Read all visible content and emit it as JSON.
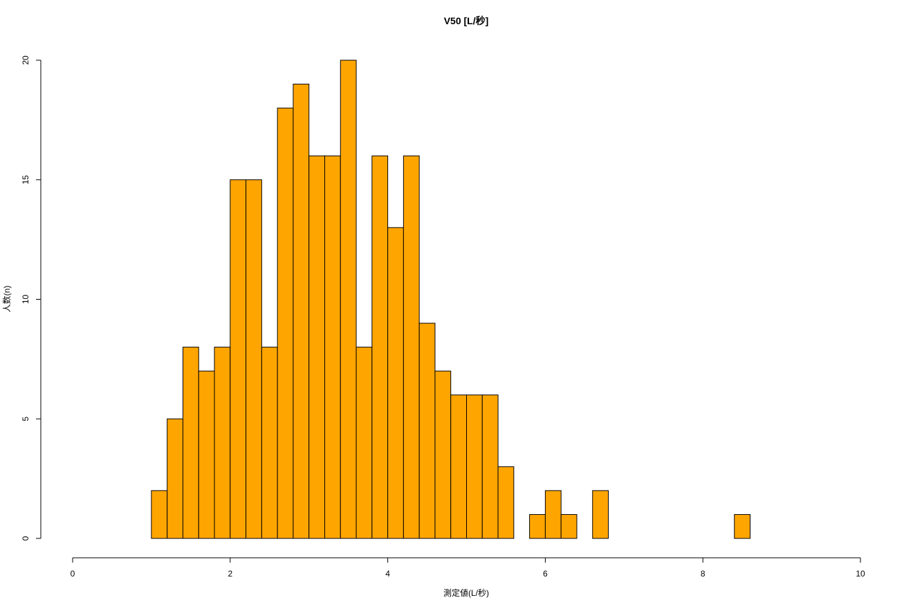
{
  "chart_data": {
    "type": "bar",
    "title": "V50 [L/秒]",
    "xlabel": "測定値(L/秒)",
    "ylabel": "人数(n)",
    "xlim": [
      0,
      10
    ],
    "ylim": [
      0,
      20
    ],
    "x_ticks": [
      "0",
      "2",
      "4",
      "6",
      "8",
      "10"
    ],
    "y_ticks": [
      "0",
      "5",
      "10",
      "15",
      "20"
    ],
    "bin_width": 0.2,
    "bin_starts": [
      1.0,
      1.2,
      1.4,
      1.6,
      1.8,
      2.0,
      2.2,
      2.4,
      2.6,
      2.8,
      3.0,
      3.2,
      3.4,
      3.6,
      3.8,
      4.0,
      4.2,
      4.4,
      4.6,
      4.8,
      5.0,
      5.2,
      5.4,
      5.6,
      5.8,
      6.0,
      6.2,
      6.4,
      6.6,
      6.8,
      7.0,
      7.2,
      7.4,
      7.6,
      7.8,
      8.0,
      8.2,
      8.4
    ],
    "values": [
      2,
      5,
      8,
      7,
      8,
      15,
      15,
      8,
      18,
      19,
      16,
      16,
      20,
      8,
      16,
      13,
      16,
      9,
      7,
      6,
      6,
      6,
      3,
      0,
      1,
      2,
      1,
      0,
      2,
      0,
      0,
      0,
      0,
      0,
      0,
      0,
      0,
      1
    ],
    "bar_color": "#FFA500",
    "border_color": "#000000",
    "grid": false,
    "legend": "none"
  }
}
